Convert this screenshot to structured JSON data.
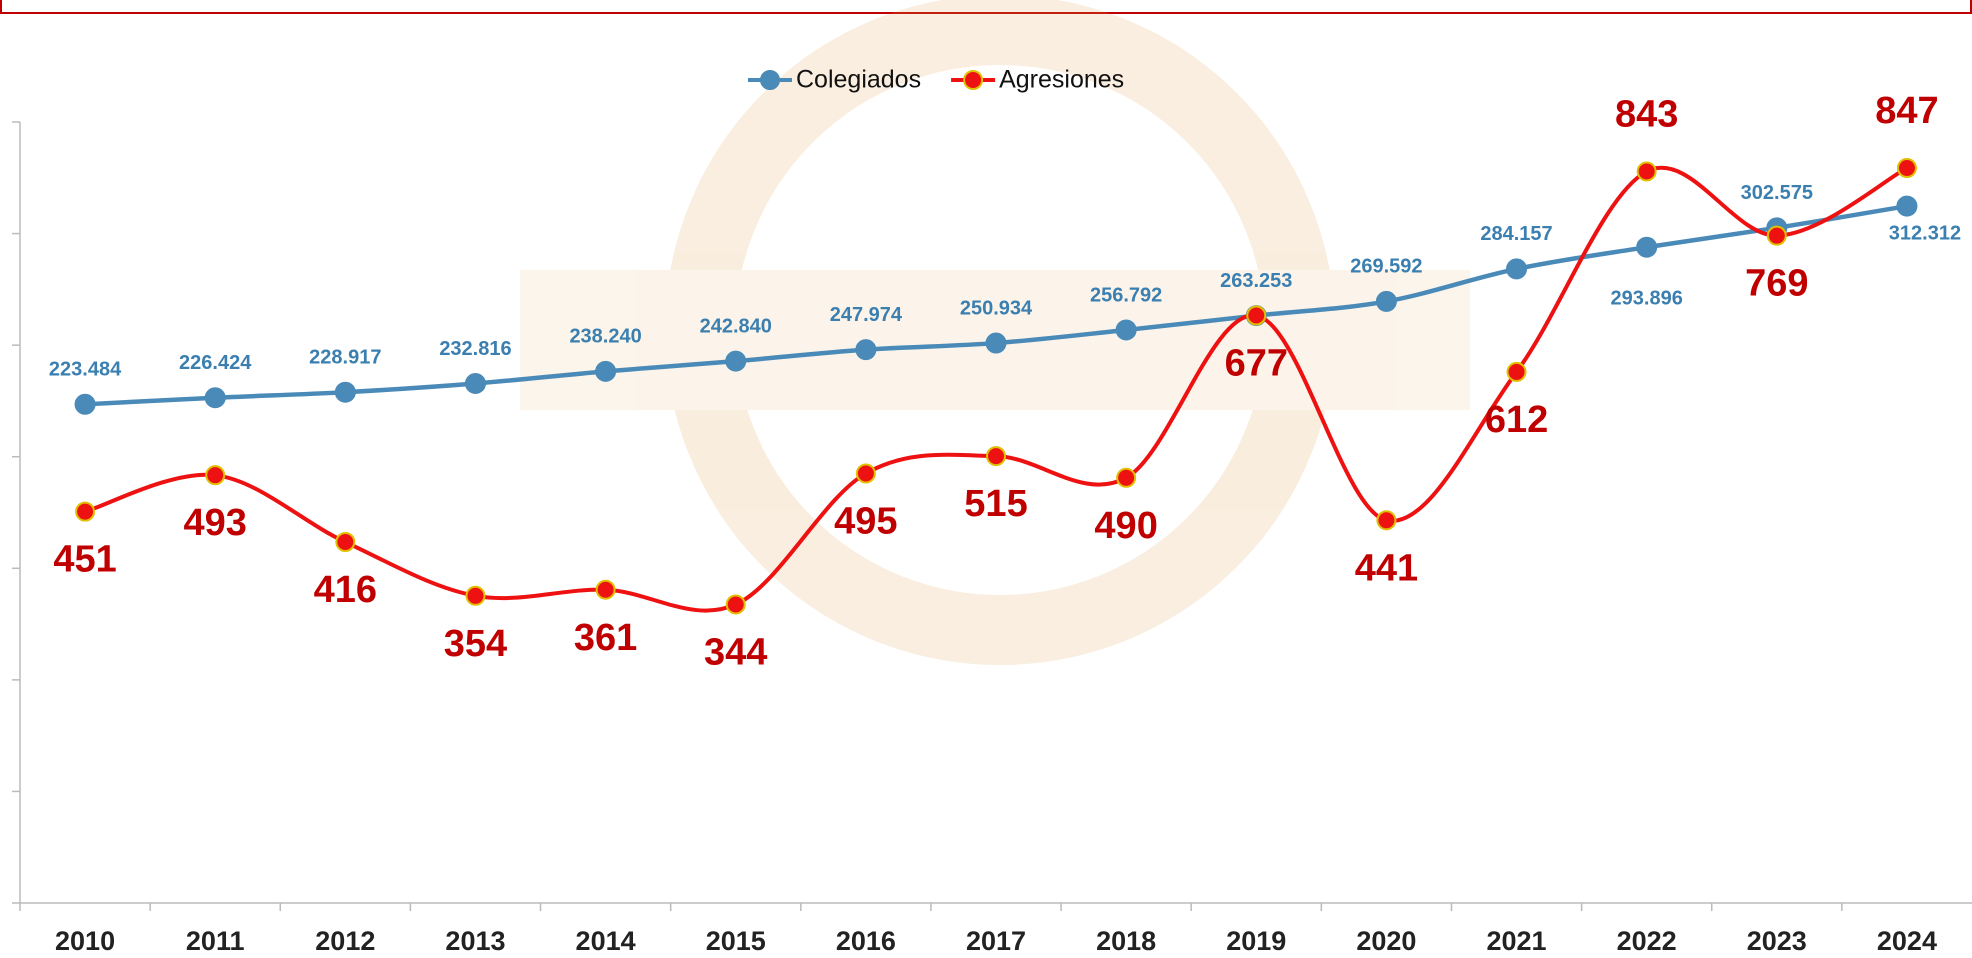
{
  "chart_data": {
    "type": "line",
    "categories": [
      "2010",
      "2011",
      "2012",
      "2013",
      "2014",
      "2015",
      "2016",
      "2017",
      "2018",
      "2019",
      "2020",
      "2021",
      "2022",
      "2023",
      "2024"
    ],
    "series": [
      {
        "name": "Colegiados",
        "color": "#4a8ab8",
        "axis": "y",
        "values": [
          223484,
          226424,
          228917,
          232816,
          238240,
          242840,
          247974,
          250934,
          256792,
          263253,
          269592,
          284157,
          293896,
          302575,
          312312
        ],
        "value_labels": [
          "223.484",
          "226.424",
          "228.917",
          "232.816",
          "238.240",
          "242.840",
          "247.974",
          "250.934",
          "256.792",
          "263.253",
          "269.592",
          "284.157",
          "293.896",
          "302.575",
          "312.312"
        ]
      },
      {
        "name": "Agresiones",
        "color": "#ee1111",
        "axis": "y2",
        "values": [
          451,
          493,
          416,
          354,
          361,
          344,
          495,
          515,
          490,
          677,
          441,
          612,
          843,
          769,
          847
        ]
      }
    ],
    "ylim": [
      0,
      350000
    ],
    "yticks": [
      0,
      50000,
      100000,
      150000,
      200000,
      250000,
      300000,
      350000
    ],
    "y2lim": [
      0,
      900
    ],
    "smooth": true,
    "legend": "top"
  }
}
